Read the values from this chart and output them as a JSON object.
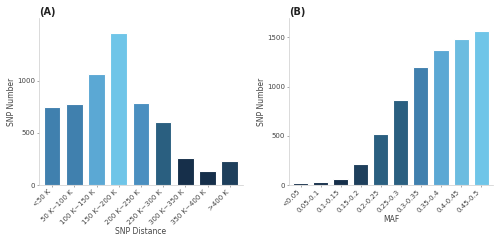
{
  "chartA": {
    "title": "(A)",
    "categories": [
      "<50 K",
      "50 K~100 K",
      "100 K~150 K",
      "150 K~200 K",
      "200 K~250 K",
      "250 K~300 K",
      "300 K~350 K",
      "350 K~400 K",
      ">400 K"
    ],
    "values": [
      750,
      780,
      1060,
      1450,
      790,
      600,
      265,
      135,
      230
    ],
    "colors": [
      "#4080ae",
      "#4080ae",
      "#5ba8d4",
      "#6fc5e8",
      "#4a8fc0",
      "#2a5f80",
      "#162f4a",
      "#162f4a",
      "#1e3f5c"
    ],
    "xlabel": "SNP Distance",
    "ylabel": "SNP Number",
    "ylim": [
      0,
      1600
    ],
    "yticks": [
      0,
      500,
      1000
    ]
  },
  "chartB": {
    "title": "(B)",
    "categories": [
      "<0.05",
      "0.05-0.1",
      "0.1-0.15",
      "0.15-0.2",
      "0.2-0.25",
      "0.25-0.3",
      "0.3-0.35",
      "0.35-0.4",
      "0.4-0.45",
      "0.45-0.5"
    ],
    "values": [
      18,
      28,
      65,
      215,
      515,
      870,
      1200,
      1370,
      1480,
      1570
    ],
    "colors": [
      "#162f4a",
      "#162f4a",
      "#162f4a",
      "#1e3f5c",
      "#2a5f80",
      "#2a5f80",
      "#4080ae",
      "#5ba8d4",
      "#6bbce0",
      "#6fc5e8"
    ],
    "xlabel": "MAF",
    "ylabel": "SNP Number",
    "ylim": [
      0,
      1700
    ],
    "yticks": [
      0,
      500,
      1000,
      1500
    ]
  },
  "background_color": "#ffffff",
  "fig_bg": "#ffffff",
  "tick_fontsize": 5,
  "label_fontsize": 5.5,
  "title_fontsize": 7
}
